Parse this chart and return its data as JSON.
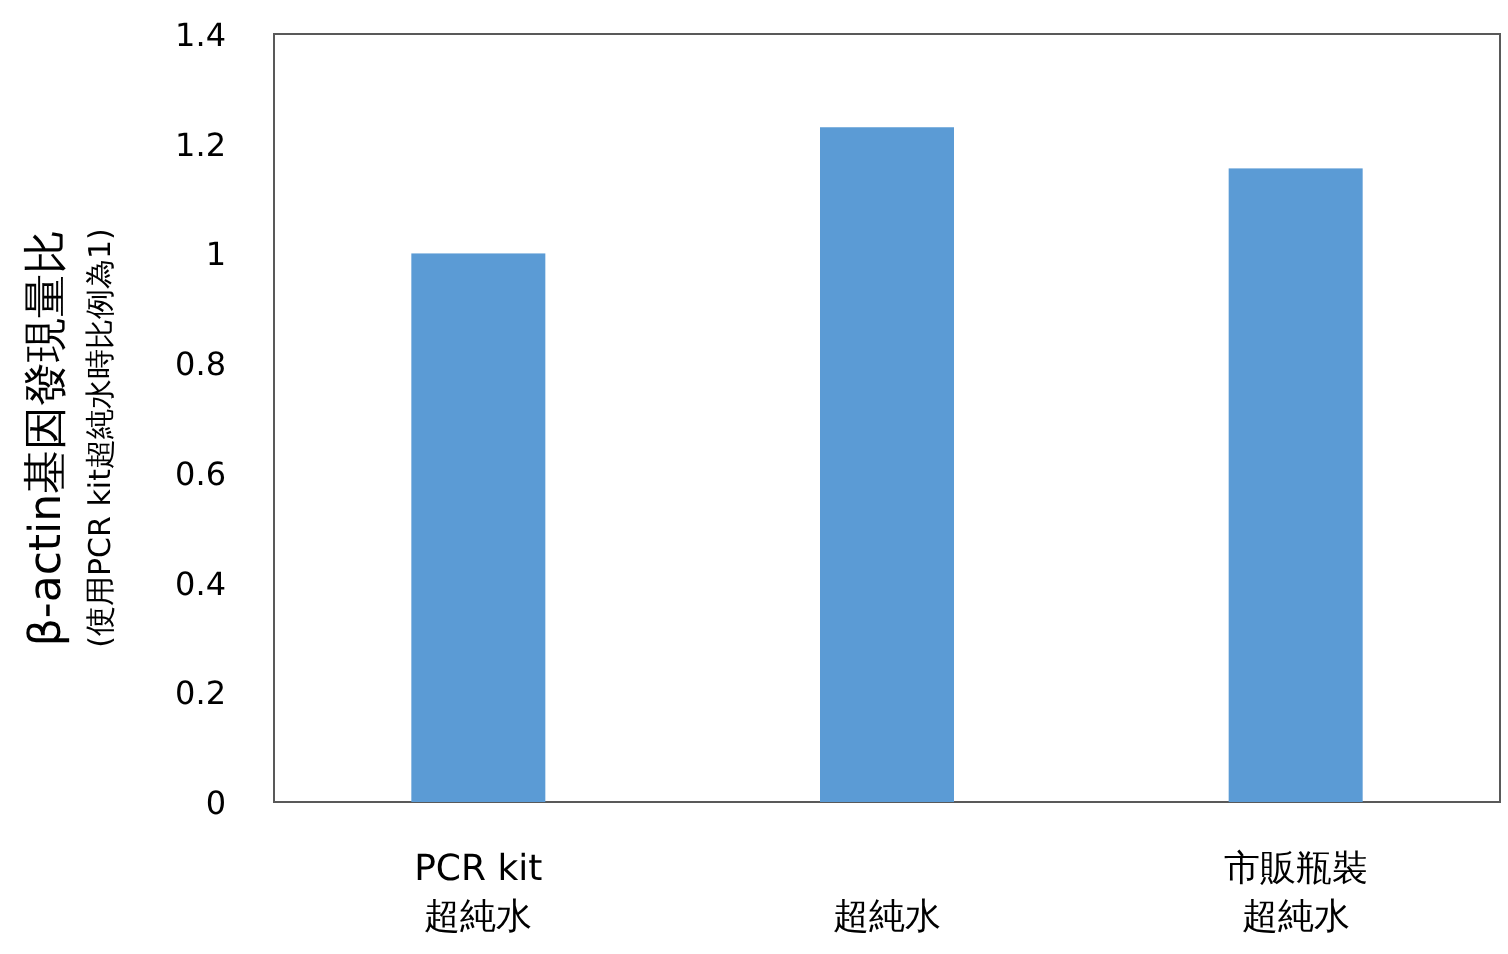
{
  "chart_data": {
    "type": "bar",
    "ylabel": "β-actin基因發現量比\n(使用PCR kit超純水時比例為1)",
    "categories": [
      "PCR kit\n超純水",
      "超純水",
      "市販瓶裝超純水"
    ],
    "values": [
      1.0,
      1.23,
      1.155
    ],
    "color": "#5b9bd5",
    "ylim": [
      0,
      1.4
    ],
    "yticks": [
      0,
      0.2,
      0.4,
      0.6,
      0.8,
      1,
      1.2,
      1.4
    ],
    "grid": false
  }
}
